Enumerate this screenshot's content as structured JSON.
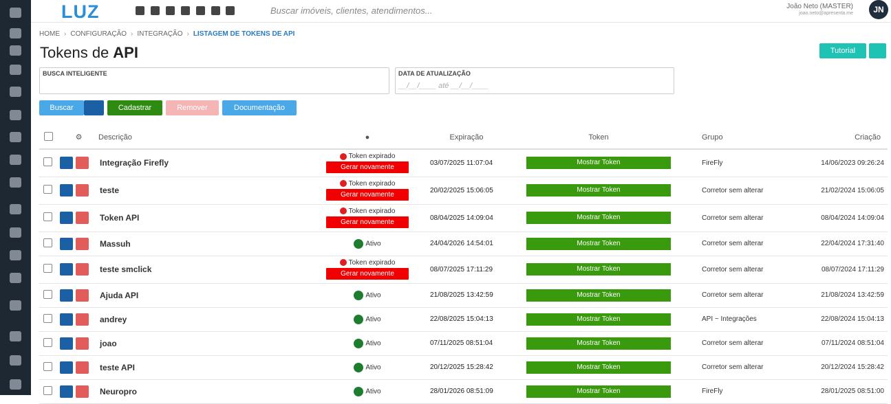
{
  "header": {
    "logo": "LUZ",
    "search_placeholder": "Buscar imóveis, clientes, atendimentos...",
    "user_name": "João Neto (MASTER)",
    "user_email": "joao.neto@apresenta.me",
    "avatar": "JN"
  },
  "breadcrumb": [
    "HOME",
    "CONFIGURAÇÃO",
    "INTEGRAÇÃO",
    "LISTAGEM DE TOKENS DE API"
  ],
  "page_title": {
    "light": "Tokens de",
    "bold": "API"
  },
  "buttons": {
    "tutorial": "Tutorial",
    "search": "Buscar",
    "register": "Cadastrar",
    "remove": "Remover",
    "docs": "Documentação"
  },
  "filters": {
    "smart_search": "BUSCA INTELIGENTE",
    "update_date": "DATA DE ATUALIZAÇÃO",
    "date_placeholder": "__/__/____ até __/__/____"
  },
  "table": {
    "columns": {
      "description": "Descrição",
      "expiration": "Expiração",
      "token": "Token",
      "group": "Grupo",
      "created": "Criação"
    },
    "rows": [
      {
        "description": "Integração Firefly",
        "status": "Token expirado",
        "action": "Gerar novamente",
        "expiration": "03/07/2025 11:07:04",
        "token": "Mostrar Token",
        "group": "FireFly",
        "created": "14/06/2023 09:26:24"
      },
      {
        "description": "teste",
        "status": "Token expirado",
        "action": "Gerar novamente",
        "expiration": "20/02/2025 15:06:05",
        "token": "Mostrar Token",
        "group": "Corretor sem alterar",
        "created": "21/02/2024 15:06:05"
      },
      {
        "description": "Token API",
        "status": "Token expirado",
        "action": "Gerar novamente",
        "expiration": "08/04/2025 14:09:04",
        "token": "Mostrar Token",
        "group": "Corretor sem alterar",
        "created": "08/04/2024 14:09:04"
      },
      {
        "description": "Massuh",
        "status": "Ativo",
        "expiration": "24/04/2026 14:54:01",
        "token": "Mostrar Token",
        "group": "Corretor sem alterar",
        "created": "22/04/2024 17:31:40"
      },
      {
        "description": "teste smclick",
        "status": "Token expirado",
        "action": "Gerar novamente",
        "expiration": "08/07/2025 17:11:29",
        "token": "Mostrar Token",
        "group": "Corretor sem alterar",
        "created": "08/07/2024 17:11:29"
      },
      {
        "description": "Ajuda API",
        "status": "Ativo",
        "expiration": "21/08/2025 13:42:59",
        "token": "Mostrar Token",
        "group": "Corretor sem alterar",
        "created": "21/08/2024 13:42:59"
      },
      {
        "description": "andrey",
        "status": "Ativo",
        "expiration": "22/08/2025 15:04:13",
        "token": "Mostrar Token",
        "group": "API ~ Integrações",
        "created": "22/08/2024 15:04:13"
      },
      {
        "description": "joao",
        "status": "Ativo",
        "expiration": "07/11/2025 08:51:04",
        "token": "Mostrar Token",
        "group": "Corretor sem alterar",
        "created": "07/11/2024 08:51:04"
      },
      {
        "description": "teste API",
        "status": "Ativo",
        "expiration": "20/12/2025 15:28:42",
        "token": "Mostrar Token",
        "group": "Corretor sem alterar",
        "created": "20/12/2024 15:28:42"
      },
      {
        "description": "Neuropro",
        "status": "Ativo",
        "expiration": "28/01/2026 08:51:09",
        "token": "Mostrar Token",
        "group": "FireFly",
        "created": "28/01/2025 08:51:00"
      }
    ]
  }
}
